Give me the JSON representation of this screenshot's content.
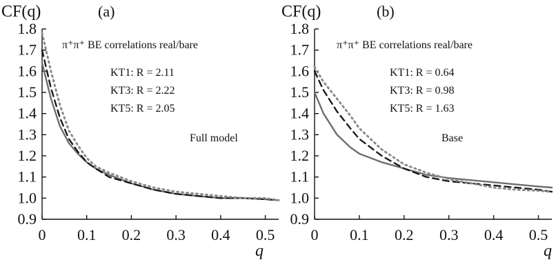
{
  "chart_data": [
    {
      "type": "line",
      "panel_label": "(a)",
      "ylabel": "CF(q)",
      "xlabel": "q",
      "xlim": [
        0,
        0.53
      ],
      "ylim": [
        0.9,
        1.8
      ],
      "xticks": [
        "0",
        "0.1",
        "0.2",
        "0.3",
        "0.4",
        "0.5"
      ],
      "yticks": [
        "0.9",
        "1.0",
        "1.1",
        "1.2",
        "1.3",
        "1.4",
        "1.5",
        "1.6",
        "1.7",
        "1.8"
      ],
      "annotation_title": "π⁺π⁺ BE correlations real/bare",
      "annotations": [
        "KT1: R = 2.11",
        "KT3: R = 2.22",
        "KT5: R = 2.05"
      ],
      "model_label": "Full model",
      "series": [
        {
          "style": "solid",
          "color": "#6e6e6e",
          "x": [
            0,
            0.02,
            0.04,
            0.06,
            0.08,
            0.1,
            0.12,
            0.15,
            0.2,
            0.25,
            0.3,
            0.35,
            0.4,
            0.45,
            0.5,
            0.53
          ],
          "y": [
            1.64,
            1.47,
            1.34,
            1.26,
            1.21,
            1.17,
            1.14,
            1.11,
            1.07,
            1.04,
            1.02,
            1.01,
            1.0,
            1.0,
            0.995,
            0.99
          ]
        },
        {
          "style": "dashed",
          "color": "#1a1a1a",
          "x": [
            0,
            0.02,
            0.04,
            0.06,
            0.08,
            0.1,
            0.12,
            0.15,
            0.2,
            0.25,
            0.3,
            0.35,
            0.4,
            0.45,
            0.5,
            0.53
          ],
          "y": [
            1.7,
            1.52,
            1.38,
            1.28,
            1.22,
            1.17,
            1.14,
            1.1,
            1.07,
            1.04,
            1.02,
            1.01,
            1.0,
            1.0,
            0.995,
            0.99
          ]
        },
        {
          "style": "dotted",
          "color": "#8a8a8a",
          "x": [
            0,
            0.02,
            0.04,
            0.06,
            0.08,
            0.1,
            0.12,
            0.15,
            0.2,
            0.25,
            0.3,
            0.35,
            0.4,
            0.45,
            0.5,
            0.53
          ],
          "y": [
            1.78,
            1.6,
            1.44,
            1.32,
            1.25,
            1.19,
            1.15,
            1.12,
            1.08,
            1.05,
            1.03,
            1.02,
            1.01,
            1.0,
            1.0,
            0.99
          ]
        }
      ]
    },
    {
      "type": "line",
      "panel_label": "(b)",
      "ylabel": "CF(q)",
      "xlabel": "q",
      "xlim": [
        0,
        0.53
      ],
      "ylim": [
        0.9,
        1.8
      ],
      "xticks": [
        "0",
        "0.1",
        "0.2",
        "0.3",
        "0.4",
        "0.5"
      ],
      "yticks": [
        "0.9",
        "1.0",
        "1.1",
        "1.2",
        "1.3",
        "1.4",
        "1.5",
        "1.6",
        "1.7",
        "1.8"
      ],
      "annotation_title": "π⁺π⁺ BE correlations real/bare",
      "annotations": [
        "KT1: R = 0.64",
        "KT3: R = 0.98",
        "KT5: R = 1.63"
      ],
      "model_label": "Base",
      "series": [
        {
          "style": "solid",
          "color": "#6e6e6e",
          "x": [
            0,
            0.02,
            0.05,
            0.08,
            0.1,
            0.15,
            0.2,
            0.25,
            0.3,
            0.35,
            0.4,
            0.45,
            0.5,
            0.53
          ],
          "y": [
            1.5,
            1.4,
            1.3,
            1.24,
            1.21,
            1.17,
            1.14,
            1.11,
            1.095,
            1.085,
            1.075,
            1.065,
            1.055,
            1.05
          ]
        },
        {
          "style": "dashed",
          "color": "#1a1a1a",
          "x": [
            0,
            0.02,
            0.05,
            0.08,
            0.1,
            0.15,
            0.2,
            0.25,
            0.3,
            0.35,
            0.4,
            0.45,
            0.5,
            0.53
          ],
          "y": [
            1.6,
            1.51,
            1.41,
            1.33,
            1.28,
            1.2,
            1.14,
            1.1,
            1.08,
            1.07,
            1.06,
            1.05,
            1.04,
            1.03
          ]
        },
        {
          "style": "dotted",
          "color": "#8a8a8a",
          "x": [
            0,
            0.02,
            0.05,
            0.08,
            0.1,
            0.15,
            0.2,
            0.25,
            0.3,
            0.35,
            0.4,
            0.45,
            0.5,
            0.53
          ],
          "y": [
            1.62,
            1.55,
            1.47,
            1.39,
            1.33,
            1.23,
            1.16,
            1.12,
            1.09,
            1.07,
            1.05,
            1.04,
            1.035,
            1.03
          ]
        }
      ]
    }
  ]
}
